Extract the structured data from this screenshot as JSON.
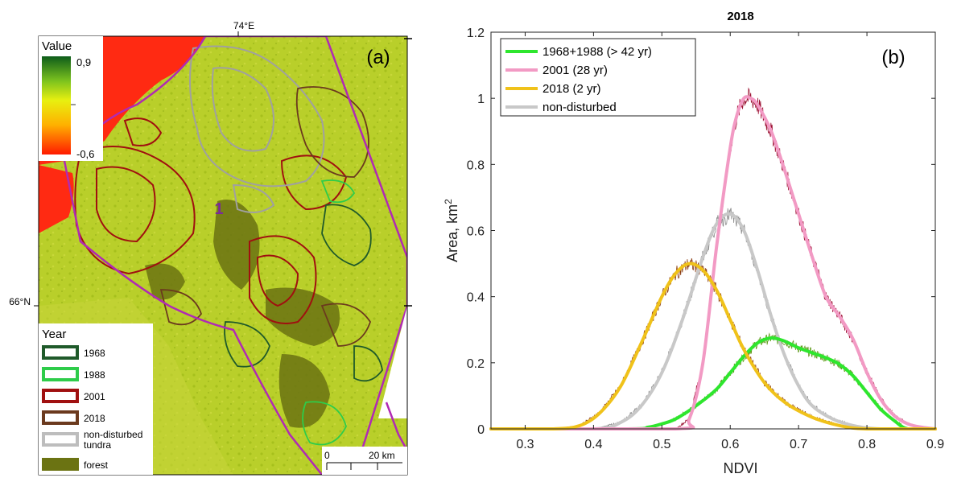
{
  "map": {
    "panel_label": "(a)",
    "lon_label": "74°E",
    "lat_label": "66°N",
    "site_label": "1",
    "colorbar": {
      "title": "Value",
      "max_label": "0,9",
      "min_label": "-0,6"
    },
    "legend": {
      "title": "Year",
      "items": [
        {
          "label": "1968",
          "color": "#1f5a2a",
          "kind": "outline"
        },
        {
          "label": "1988",
          "color": "#2ecc4a",
          "kind": "outline"
        },
        {
          "label": "2001",
          "color": "#a01010",
          "kind": "outline"
        },
        {
          "label": "2018",
          "color": "#6b3a1e",
          "kind": "outline"
        },
        {
          "label": "non-disturbed tundra",
          "color": "#bdbdbd",
          "kind": "outline"
        },
        {
          "label": "forest",
          "color": "#6b7312",
          "kind": "fill"
        }
      ]
    },
    "scalebar": {
      "start_label": "0",
      "end_label": "20 km"
    }
  },
  "chart_data": {
    "type": "line",
    "title": "2018",
    "panel_label": "(b)",
    "xlabel": "NDVI",
    "ylabel": "Area, km²",
    "xlim": [
      0.25,
      0.9
    ],
    "ylim": [
      0,
      1.2
    ],
    "xticks": [
      0.3,
      0.4,
      0.5,
      0.6,
      0.7,
      0.8,
      0.9
    ],
    "yticks": [
      0,
      0.2,
      0.4,
      0.6,
      0.8,
      1,
      1.2
    ],
    "ytick_labels": [
      "0",
      "0.2",
      "0.4",
      "0.6",
      "0.8",
      "1",
      "1.2"
    ],
    "legend_position": "top-left",
    "grid": false,
    "series": [
      {
        "name": "1968+1988 (> 42 yr)",
        "color": "#2ee62e",
        "raw_color": "#5f9a1a",
        "x": [
          0.25,
          0.45,
          0.48,
          0.5,
          0.52,
          0.55,
          0.58,
          0.6,
          0.62,
          0.64,
          0.66,
          0.68,
          0.7,
          0.72,
          0.74,
          0.76,
          0.78,
          0.8,
          0.82,
          0.84,
          0.86,
          0.9
        ],
        "y": [
          0,
          0,
          0.005,
          0.015,
          0.03,
          0.07,
          0.12,
          0.17,
          0.22,
          0.26,
          0.275,
          0.265,
          0.245,
          0.23,
          0.215,
          0.195,
          0.16,
          0.11,
          0.06,
          0.025,
          0,
          0
        ]
      },
      {
        "name": "2001 (28 yr)",
        "color": "#f29ac4",
        "raw_color": "#9a1030",
        "x": [
          0.25,
          0.52,
          0.54,
          0.56,
          0.58,
          0.6,
          0.61,
          0.62,
          0.63,
          0.64,
          0.66,
          0.68,
          0.7,
          0.72,
          0.74,
          0.76,
          0.78,
          0.8,
          0.82,
          0.84,
          0.86,
          0.88,
          0.9
        ],
        "y": [
          0,
          0,
          0.03,
          0.2,
          0.55,
          0.85,
          0.95,
          1.0,
          1.0,
          0.98,
          0.9,
          0.78,
          0.65,
          0.52,
          0.4,
          0.34,
          0.27,
          0.17,
          0.09,
          0.04,
          0.015,
          0.005,
          0
        ]
      },
      {
        "name": "2018 (2 yr)",
        "color": "#f0c21a",
        "raw_color": "#8a3a10",
        "x": [
          0.25,
          0.34,
          0.38,
          0.41,
          0.44,
          0.47,
          0.5,
          0.52,
          0.54,
          0.56,
          0.58,
          0.6,
          0.62,
          0.65,
          0.68,
          0.72,
          0.76,
          0.8,
          0.9
        ],
        "y": [
          0,
          0,
          0.01,
          0.05,
          0.13,
          0.26,
          0.4,
          0.47,
          0.5,
          0.48,
          0.42,
          0.33,
          0.24,
          0.14,
          0.08,
          0.035,
          0.01,
          0,
          0
        ]
      },
      {
        "name": "non-disturbed",
        "color": "#c8c8c8",
        "raw_color": "#8a8a8a",
        "x": [
          0.25,
          0.4,
          0.44,
          0.47,
          0.5,
          0.53,
          0.56,
          0.58,
          0.6,
          0.62,
          0.64,
          0.66,
          0.68,
          0.7,
          0.72,
          0.75,
          0.78,
          0.82,
          0.9
        ],
        "y": [
          0,
          0,
          0.02,
          0.07,
          0.17,
          0.33,
          0.52,
          0.62,
          0.65,
          0.6,
          0.48,
          0.34,
          0.22,
          0.13,
          0.07,
          0.03,
          0.01,
          0,
          0
        ]
      }
    ]
  }
}
